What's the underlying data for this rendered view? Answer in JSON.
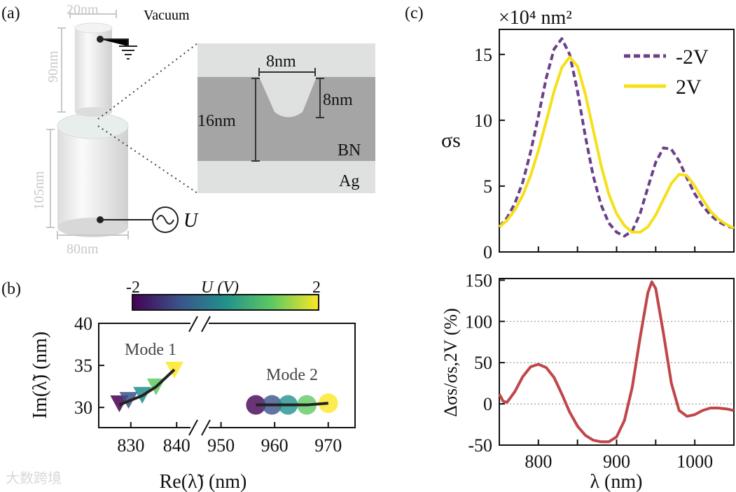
{
  "panel_labels": {
    "a": "(a)",
    "b": "(b)",
    "c": "(c)"
  },
  "panel_a": {
    "top_width": "20nm",
    "top_height": "90nm",
    "bottom_height": "105nm",
    "bottom_width": "80nm",
    "vacuum": "Vacuum",
    "voltage": "U",
    "inset": {
      "groove_width": "8nm",
      "groove_depth": "8nm",
      "bn_thickness": "16nm",
      "bn": "BN",
      "ag": "Ag"
    }
  },
  "watermark": "大数跨境",
  "chart_data": [
    {
      "id": "b",
      "type": "scatter",
      "xlabel": "Re(λ̃) (nm)",
      "ylabel": "Im(λ̃) (nm)",
      "xticks_left": [
        "830",
        "840"
      ],
      "xticks_right": [
        "950",
        "960",
        "970"
      ],
      "yticks": [
        "30",
        "35",
        "40"
      ],
      "xlim_left": [
        823,
        845
      ],
      "xlim_right": [
        946,
        975
      ],
      "ylim": [
        27.6,
        40
      ],
      "colorbar": {
        "label": "U (V)",
        "min": "-2",
        "max": "2",
        "colors": [
          "#440154",
          "#3b528b",
          "#21918c",
          "#5ec962",
          "#fde725"
        ]
      },
      "series": [
        {
          "name": "Mode 1",
          "marker": "triangle-down",
          "x": [
            827.5,
            829.5,
            832.5,
            835.5,
            839.5
          ],
          "y": [
            30.6,
            31.0,
            31.6,
            32.6,
            34.6
          ],
          "U": [
            -2,
            -1,
            0,
            1,
            2
          ]
        },
        {
          "name": "Mode 2",
          "marker": "circle",
          "x": [
            956.5,
            959.5,
            962.5,
            966.0,
            970.0
          ],
          "y": [
            30.3,
            30.3,
            30.3,
            30.3,
            30.5
          ],
          "U": [
            -2,
            -1,
            0,
            1,
            2
          ]
        }
      ]
    },
    {
      "id": "c-top",
      "type": "line",
      "ylabel": "σs",
      "unit_label": "×10⁴ nm²",
      "xlim": [
        750,
        1050
      ],
      "ylim": [
        0,
        16.9
      ],
      "yticks": [
        "0",
        "5",
        "10",
        "15"
      ],
      "legend": "top-right",
      "x": [
        750,
        760,
        770,
        780,
        790,
        800,
        810,
        820,
        830,
        840,
        850,
        860,
        870,
        880,
        890,
        900,
        910,
        920,
        930,
        940,
        950,
        960,
        970,
        980,
        990,
        1000,
        1010,
        1020,
        1030,
        1040,
        1050
      ],
      "series": [
        {
          "name": "-2V",
          "color": "#6b3f8a",
          "style": "dashed",
          "values": [
            1.9,
            2.6,
            3.7,
            5.3,
            7.6,
            10.3,
            13.2,
            15.4,
            16.2,
            15.0,
            12.2,
            8.8,
            5.8,
            3.6,
            2.2,
            1.5,
            1.2,
            1.6,
            2.9,
            4.9,
            6.8,
            7.9,
            7.8,
            6.9,
            5.6,
            4.4,
            3.5,
            2.8,
            2.3,
            2.0,
            1.8
          ]
        },
        {
          "name": "2V",
          "color": "#f5e01a",
          "style": "solid",
          "values": [
            1.9,
            2.4,
            3.2,
            4.3,
            5.8,
            7.7,
            9.9,
            12.2,
            14.0,
            14.8,
            14.1,
            12.0,
            9.3,
            6.6,
            4.4,
            2.9,
            2.0,
            1.5,
            1.5,
            1.9,
            2.8,
            4.0,
            5.2,
            5.9,
            5.8,
            5.0,
            4.0,
            3.1,
            2.5,
            2.1,
            1.8
          ]
        }
      ]
    },
    {
      "id": "c-bottom",
      "type": "line",
      "xlabel": "λ (nm)",
      "ylabel": "Δσs/σs,2V (%)",
      "xlim": [
        750,
        1050
      ],
      "ylim": [
        -50,
        152
      ],
      "xticks": [
        "800",
        "900",
        "1000"
      ],
      "yticks": [
        "-50",
        "0",
        "50",
        "100",
        "150"
      ],
      "gridlines": [
        0,
        50,
        100
      ],
      "series": [
        {
          "name": "Δσs",
          "color": "#c0464a",
          "x": [
            750,
            755,
            760,
            770,
            780,
            790,
            800,
            810,
            820,
            830,
            840,
            850,
            860,
            870,
            880,
            890,
            900,
            910,
            920,
            930,
            940,
            945,
            950,
            960,
            970,
            980,
            990,
            1000,
            1010,
            1020,
            1030,
            1040,
            1050
          ],
          "values": [
            12,
            3,
            2,
            15,
            33,
            45,
            48,
            44,
            32,
            12,
            -10,
            -27,
            -38,
            -44,
            -46,
            -46,
            -40,
            -20,
            20,
            80,
            135,
            148,
            140,
            85,
            25,
            -8,
            -15,
            -13,
            -8,
            -5,
            -5,
            -6,
            -8
          ]
        }
      ]
    }
  ]
}
